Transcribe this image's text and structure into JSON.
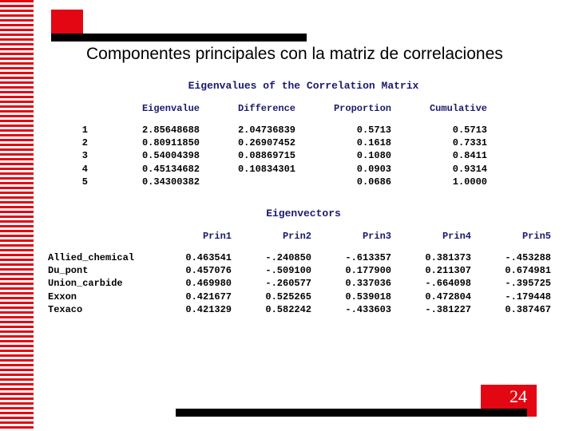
{
  "title": "Componentes principales con la matriz de correlaciones",
  "page_number": "24",
  "colors": {
    "accent_red": "#e30613",
    "text_blue": "#1a1a6d",
    "black": "#000000",
    "white": "#ffffff"
  },
  "eigenvalues": {
    "section_title": "Eigenvalues of the Correlation Matrix",
    "headers": {
      "eigenvalue": "Eigenvalue",
      "difference": "Difference",
      "proportion": "Proportion",
      "cumulative": "Cumulative"
    },
    "rows": [
      {
        "idx": "1",
        "eigenvalue": "2.85648688",
        "difference": "2.04736839",
        "proportion": "0.5713",
        "cumulative": "0.5713"
      },
      {
        "idx": "2",
        "eigenvalue": "0.80911850",
        "difference": "0.26907452",
        "proportion": "0.1618",
        "cumulative": "0.7331"
      },
      {
        "idx": "3",
        "eigenvalue": "0.54004398",
        "difference": "0.08869715",
        "proportion": "0.1080",
        "cumulative": "0.8411"
      },
      {
        "idx": "4",
        "eigenvalue": "0.45134682",
        "difference": "0.10834301",
        "proportion": "0.0903",
        "cumulative": "0.9314"
      },
      {
        "idx": "5",
        "eigenvalue": "0.34300382",
        "difference": "",
        "proportion": "0.0686",
        "cumulative": "1.0000"
      }
    ]
  },
  "eigenvectors": {
    "section_title": "Eigenvectors",
    "headers": {
      "p1": "Prin1",
      "p2": "Prin2",
      "p3": "Prin3",
      "p4": "Prin4",
      "p5": "Prin5"
    },
    "rows": [
      {
        "label": "Allied_chemical",
        "p1": "0.463541",
        "p2": "-.240850",
        "p3": "-.613357",
        "p4": "0.381373",
        "p5": "-.453288"
      },
      {
        "label": "Du_pont",
        "p1": "0.457076",
        "p2": "-.509100",
        "p3": "0.177900",
        "p4": "0.211307",
        "p5": "0.674981"
      },
      {
        "label": "Union_carbide",
        "p1": "0.469980",
        "p2": "-.260577",
        "p3": "0.337036",
        "p4": "-.664098",
        "p5": "-.395725"
      },
      {
        "label": "Exxon",
        "p1": "0.421677",
        "p2": "0.525265",
        "p3": "0.539018",
        "p4": "0.472804",
        "p5": "-.179448"
      },
      {
        "label": "Texaco",
        "p1": "0.421329",
        "p2": "0.582242",
        "p3": "-.433603",
        "p4": "-.381227",
        "p5": "0.387467"
      }
    ]
  }
}
